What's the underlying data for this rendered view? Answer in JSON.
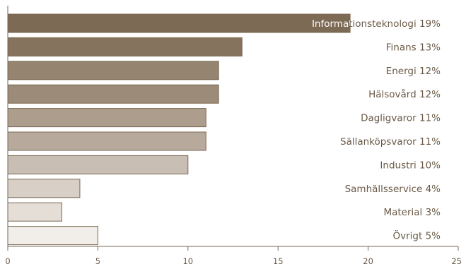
{
  "chart_data": {
    "type": "bar",
    "orientation": "horizontal",
    "categories": [
      "Informationsteknologi 19%",
      "Finans 13%",
      "Energi 12%",
      "Hälsovård 12%",
      "Dagligvaror 11%",
      "Sällanköpsvaror 11%",
      "Industri 10%",
      "Samhällsservice 4%",
      "Material 3%",
      "Övrigt 5%"
    ],
    "values": [
      19,
      13,
      11.7,
      11.7,
      11,
      11,
      10,
      4,
      3,
      5
    ],
    "xlim": [
      0,
      25
    ],
    "xticks": [
      0,
      5,
      10,
      15,
      20,
      25
    ],
    "grid": false,
    "legend": "none",
    "bar_colors": [
      "#7d6a55",
      "#86735e",
      "#958470",
      "#9c8b78",
      "#ac9d8d",
      "#b7aa9c",
      "#c9beb3",
      "#d8d0c7",
      "#e4ded7",
      "#f1eeea"
    ],
    "bar_stroke": "#7a6753",
    "axis_color": "#7a6753",
    "text_color": "#6b5a48",
    "highlight_label_color": "#ffffff"
  }
}
